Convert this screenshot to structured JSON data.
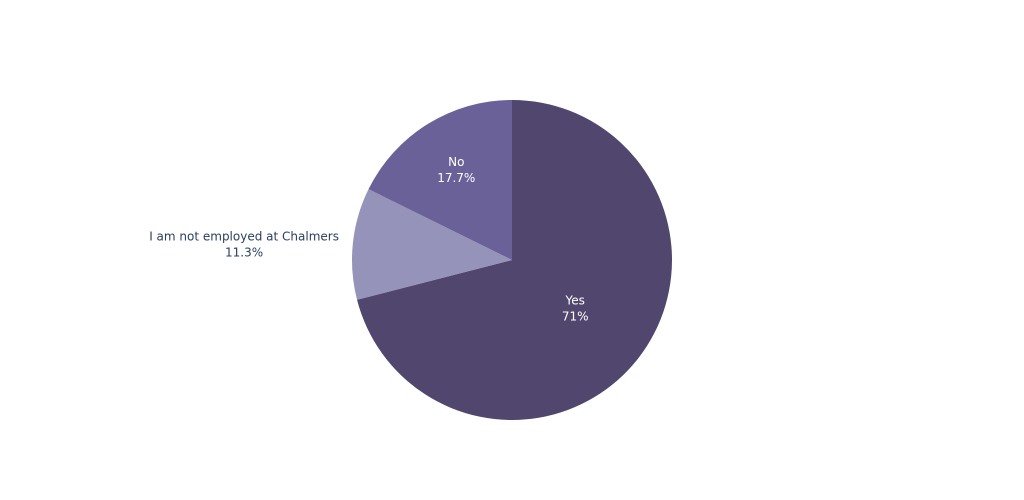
{
  "chart_data": {
    "type": "pie",
    "categories": [
      "Yes",
      "I am not employed at Chalmers",
      "No"
    ],
    "values": [
      71,
      11.3,
      17.7
    ],
    "value_labels": [
      "71%",
      "11.3%",
      "17.7%"
    ],
    "colors": [
      "#51476e",
      "#9593ba",
      "#6b6199"
    ]
  }
}
